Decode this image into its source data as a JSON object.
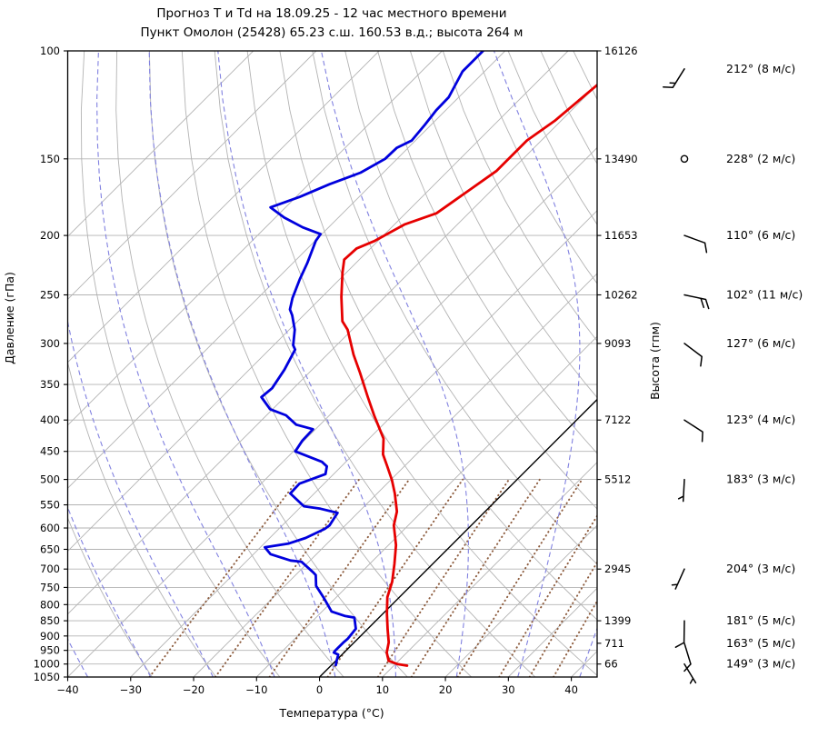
{
  "title": {
    "line1": "Прогноз Т и Td на 18.09.25 - 12 час местного времени",
    "line2": "Пункт Омолон (25428) 65.23 с.ш. 160.53 в.д.; высота 264 м"
  },
  "chart_data": {
    "type": "skewt_log_p",
    "skew_deg": 45,
    "x_axis": {
      "label": "Температура (°C)",
      "min": -40,
      "max": 44.1,
      "ticks": [
        -40,
        -30,
        -20,
        -10,
        0,
        10,
        20,
        30,
        40
      ]
    },
    "y_axis": {
      "label": "Давление (гПа)",
      "min": 100,
      "max": 1050,
      "scale": "log",
      "ticks": [
        100,
        150,
        200,
        250,
        300,
        350,
        400,
        450,
        500,
        550,
        600,
        650,
        700,
        750,
        800,
        850,
        900,
        950,
        1000,
        1050
      ]
    },
    "y2_axis": {
      "label": "Высота (гпм)",
      "ticks": [
        {
          "p": 100,
          "h": "16126"
        },
        {
          "p": 150,
          "h": "13490"
        },
        {
          "p": 200,
          "h": "11653"
        },
        {
          "p": 250,
          "h": "10262"
        },
        {
          "p": 300,
          "h": "9093"
        },
        {
          "p": 400,
          "h": "7122"
        },
        {
          "p": 500,
          "h": "5512"
        },
        {
          "p": 700,
          "h": "2945"
        },
        {
          "p": 850,
          "h": "1399"
        },
        {
          "p": 925,
          "h": "711"
        },
        {
          "p": 1000,
          "h": "66"
        }
      ]
    },
    "series": [
      {
        "name": "temperature",
        "label": "T",
        "color": "#e60000",
        "width": 2.8,
        "points": [
          [
            113,
            -49.9
          ],
          [
            130,
            -51.0
          ],
          [
            140,
            -52.3
          ],
          [
            157,
            -52.3
          ],
          [
            170,
            -53.7
          ],
          [
            184,
            -55.1
          ],
          [
            192,
            -58.4
          ],
          [
            204,
            -60.5
          ],
          [
            210,
            -62.2
          ],
          [
            219,
            -62.4
          ],
          [
            230,
            -60.6
          ],
          [
            252,
            -56.9
          ],
          [
            276,
            -52.9
          ],
          [
            285,
            -50.7
          ],
          [
            313,
            -45.8
          ],
          [
            335,
            -41.9
          ],
          [
            367,
            -36.8
          ],
          [
            393,
            -32.9
          ],
          [
            429,
            -27.7
          ],
          [
            455,
            -25.3
          ],
          [
            476,
            -22.7
          ],
          [
            501,
            -19.8
          ],
          [
            527,
            -17.2
          ],
          [
            564,
            -14.0
          ],
          [
            594,
            -12.3
          ],
          [
            640,
            -8.8
          ],
          [
            686,
            -6.1
          ],
          [
            734,
            -3.6
          ],
          [
            778,
            -1.9
          ],
          [
            827,
            0.6
          ],
          [
            879,
            3.3
          ],
          [
            922,
            5.5
          ],
          [
            958,
            6.8
          ],
          [
            988,
            8.4
          ],
          [
            1000,
            10.3
          ],
          [
            1006,
            12.1
          ]
        ]
      },
      {
        "name": "dewpoint",
        "label": "Td",
        "color": "#0000dd",
        "width": 2.8,
        "points": [
          [
            100,
            -73.5
          ],
          [
            108,
            -73.5
          ],
          [
            119,
            -71.6
          ],
          [
            125,
            -71.5
          ],
          [
            132,
            -71.0
          ],
          [
            140,
            -70.6
          ],
          [
            144,
            -71.8
          ],
          [
            150,
            -71.9
          ],
          [
            158,
            -73.6
          ],
          [
            165,
            -76.7
          ],
          [
            173,
            -79.4
          ],
          [
            180,
            -82.4
          ],
          [
            187,
            -78.6
          ],
          [
            194,
            -74.1
          ],
          [
            199,
            -70.2
          ],
          [
            204,
            -69.9
          ],
          [
            222,
            -67.7
          ],
          [
            232,
            -66.7
          ],
          [
            236,
            -66.3
          ],
          [
            253,
            -64.5
          ],
          [
            264,
            -63.1
          ],
          [
            270,
            -61.8
          ],
          [
            285,
            -59.1
          ],
          [
            302,
            -56.9
          ],
          [
            307,
            -55.9
          ],
          [
            331,
            -54.4
          ],
          [
            355,
            -53.4
          ],
          [
            367,
            -53.7
          ],
          [
            384,
            -50.4
          ],
          [
            393,
            -46.9
          ],
          [
            407,
            -43.8
          ],
          [
            414,
            -40.4
          ],
          [
            432,
            -40.3
          ],
          [
            450,
            -39.7
          ],
          [
            468,
            -33.8
          ],
          [
            476,
            -32.3
          ],
          [
            490,
            -31.3
          ],
          [
            508,
            -33.9
          ],
          [
            527,
            -33.8
          ],
          [
            553,
            -29.6
          ],
          [
            558,
            -26.6
          ],
          [
            567,
            -23.2
          ],
          [
            594,
            -22.5
          ],
          [
            602,
            -22.7
          ],
          [
            623,
            -24.3
          ],
          [
            636,
            -26.1
          ],
          [
            645,
            -29.3
          ],
          [
            662,
            -27.3
          ],
          [
            678,
            -23.1
          ],
          [
            681,
            -21.2
          ],
          [
            709,
            -17.6
          ],
          [
            716,
            -16.8
          ],
          [
            746,
            -15.0
          ],
          [
            781,
            -11.8
          ],
          [
            821,
            -8.5
          ],
          [
            835,
            -5.6
          ],
          [
            840,
            -3.9
          ],
          [
            876,
            -1.9
          ],
          [
            910,
            -1.6
          ],
          [
            923,
            -1.7
          ],
          [
            941,
            -1.7
          ],
          [
            951,
            -1.7
          ],
          [
            958,
            -1.6
          ],
          [
            965,
            -0.6
          ],
          [
            974,
            -0.3
          ],
          [
            990,
            0.2
          ],
          [
            1004,
            0.7
          ]
        ]
      }
    ],
    "graticule": {
      "grid_color": "#b3b3b3",
      "isotherms": {
        "min": -110,
        "max": 40,
        "step": 10,
        "zero_line_color": "#000000"
      },
      "dry_adiabats": {
        "theta_min": -30,
        "theta_max": 150,
        "step": 10
      },
      "moist_adiabats": {
        "t0_min": -40,
        "t0_max": 40,
        "step": 10,
        "color": "#8181e0"
      },
      "mixing_ratio_lines": {
        "values_g_kg": [
          0.4,
          1,
          2,
          4,
          7,
          10,
          16,
          24,
          32,
          40
        ],
        "p_top": 500,
        "color": "#8d5c3e"
      }
    }
  },
  "wind_column": {
    "label_color": "#8c8c8c",
    "barb_color": "#000000",
    "entries": [
      {
        "p": 107,
        "dir_deg": 212,
        "speed_ms": 8,
        "label": "212° (8 м/с)"
      },
      {
        "p": 150,
        "dir_deg": 228,
        "speed_ms": 2,
        "label": "228° (2 м/с)"
      },
      {
        "p": 200,
        "dir_deg": 110,
        "speed_ms": 6,
        "label": "110° (6 м/с)"
      },
      {
        "p": 250,
        "dir_deg": 102,
        "speed_ms": 11,
        "label": "102° (11 м/с)"
      },
      {
        "p": 300,
        "dir_deg": 127,
        "speed_ms": 6,
        "label": "127° (6 м/с)"
      },
      {
        "p": 400,
        "dir_deg": 123,
        "speed_ms": 4,
        "label": "123° (4 м/с)"
      },
      {
        "p": 500,
        "dir_deg": 183,
        "speed_ms": 3,
        "label": "183° (3 м/с)"
      },
      {
        "p": 700,
        "dir_deg": 204,
        "speed_ms": 3,
        "label": "204° (3 м/с)"
      },
      {
        "p": 850,
        "dir_deg": 181,
        "speed_ms": 5,
        "label": "181° (5 м/с)"
      },
      {
        "p": 925,
        "dir_deg": 163,
        "speed_ms": 5,
        "label": "163° (5 м/с)"
      },
      {
        "p": 1000,
        "dir_deg": 149,
        "speed_ms": 3,
        "label": "149° (3 м/с)"
      }
    ]
  }
}
